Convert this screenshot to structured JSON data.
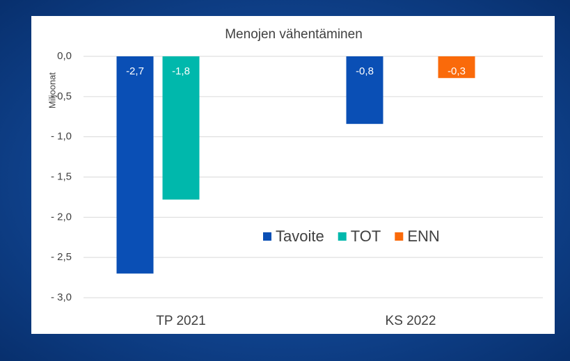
{
  "chart_data": {
    "type": "bar",
    "title": "Menojen vähentäminen",
    "y_label": "Miljoonat",
    "categories": [
      "TP 2021",
      "KS 2022"
    ],
    "series": [
      {
        "name": "Tavoite",
        "color": "#0a4fb5",
        "values": [
          -2.7,
          -0.84
        ],
        "value_labels": [
          "-2,7",
          "-0,8"
        ]
      },
      {
        "name": "TOT",
        "color": "#00b8ac",
        "values": [
          -1.78,
          null
        ],
        "value_labels": [
          "-1,8",
          null
        ]
      },
      {
        "name": "ENN",
        "color": "#fa6a0a",
        "values": [
          null,
          -0.27
        ],
        "value_labels": [
          null,
          "-0,3"
        ]
      }
    ],
    "ylim": [
      -3,
      0
    ],
    "yticks": [
      {
        "value": 0,
        "label": "0,0"
      },
      {
        "value": -0.5,
        "label": "- 0,5"
      },
      {
        "value": -1,
        "label": "- 1,0"
      },
      {
        "value": -1.5,
        "label": "- 1,5"
      },
      {
        "value": -2,
        "label": "- 2,0"
      },
      {
        "value": -2.5,
        "label": "- 2,5"
      },
      {
        "value": -3,
        "label": "- 3,0"
      }
    ],
    "grid": true,
    "legend": "center"
  }
}
